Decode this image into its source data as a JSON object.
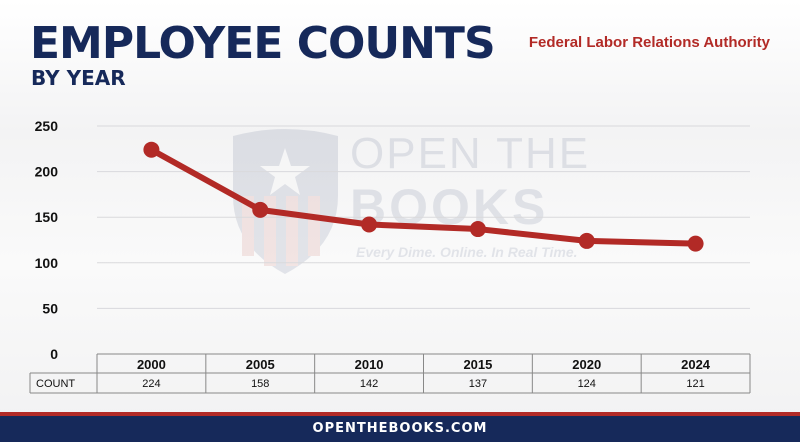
{
  "header": {
    "title": "EMPLOYEE COUNTS",
    "subtitle": "BY YEAR",
    "agency": "Federal Labor Relations Authority"
  },
  "watermark": {
    "line1": "OPEN THE",
    "line2": "BOOKS",
    "tagline": "Every Dime. Online. In Real Time."
  },
  "footer": {
    "text": "OPENTHEBOOKS.COM"
  },
  "colors": {
    "navy": "#16295a",
    "red": "#b22a26",
    "line": "#b22a26",
    "grid": "#d9d9dc"
  },
  "chart_data": {
    "type": "line",
    "categories": [
      "2000",
      "2005",
      "2010",
      "2015",
      "2020",
      "2024"
    ],
    "series": [
      {
        "values": [
          224,
          158,
          142,
          137,
          124,
          121
        ]
      }
    ],
    "table_row_label": "COUNT",
    "table_values": [
      "224",
      "158",
      "142",
      "137",
      "124",
      "121"
    ],
    "yticks": [
      0,
      50,
      100,
      150,
      200,
      250
    ],
    "ylim": [
      0,
      250
    ],
    "grid": true,
    "legend": "none"
  }
}
